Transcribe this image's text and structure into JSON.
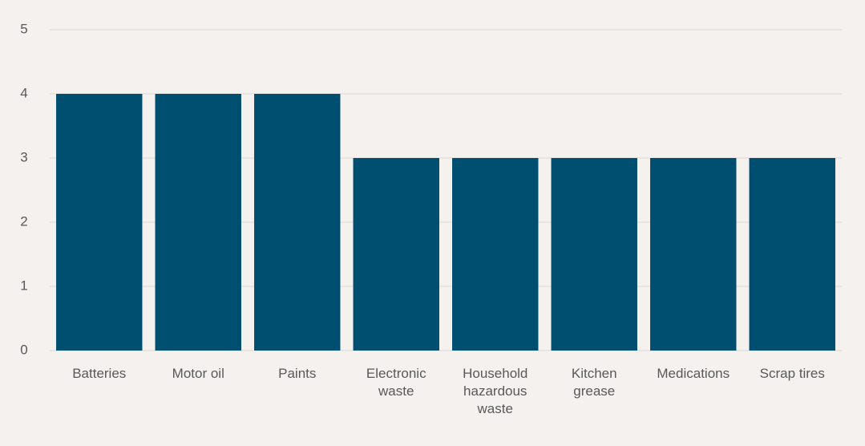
{
  "chart_data": {
    "type": "bar",
    "categories": [
      "Batteries",
      "Motor oil",
      "Paints",
      "Electronic waste",
      "Household hazardous waste",
      "Kitchen grease",
      "Medications",
      "Scrap tires"
    ],
    "values": [
      4,
      4,
      4,
      3,
      3,
      3,
      3,
      3
    ],
    "color": "#004f71",
    "ylim": [
      0,
      5
    ],
    "yticks": [
      0,
      1,
      2,
      3,
      4,
      5
    ],
    "grid": true
  }
}
